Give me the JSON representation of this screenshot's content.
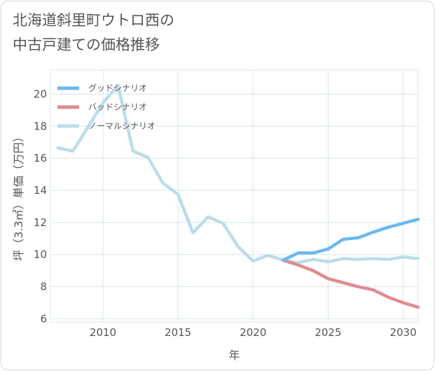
{
  "title": {
    "line1": "北海道斜里町ウトロ西の",
    "line2": "中古戸建ての価格推移"
  },
  "chart_data": {
    "type": "line",
    "xlabel": "年",
    "ylabel": "坪（3.3㎡）単価（万円）",
    "xlim": [
      2006.5,
      2031
    ],
    "ylim": [
      5.8,
      21.5
    ],
    "x_ticks": [
      2010,
      2015,
      2020,
      2025,
      2030
    ],
    "y_ticks": [
      6,
      8,
      10,
      12,
      14,
      16,
      18,
      20
    ],
    "grid": true,
    "legend_position": "top-left",
    "series": [
      {
        "name": "グッドシナリオ",
        "color": "#6cb8ee",
        "x": [
          2022,
          2023,
          2024,
          2025,
          2026,
          2027,
          2028,
          2029,
          2030,
          2031
        ],
        "values": [
          9.65,
          10.1,
          10.1,
          10.35,
          10.95,
          11.05,
          11.4,
          11.7,
          11.95,
          12.2
        ]
      },
      {
        "name": "バッドシナリオ",
        "color": "#e08a92",
        "x": [
          2022,
          2023,
          2024,
          2025,
          2026,
          2027,
          2028,
          2029,
          2030,
          2031
        ],
        "values": [
          9.65,
          9.35,
          9.0,
          8.5,
          8.25,
          8.0,
          7.8,
          7.35,
          7.0,
          6.72
        ]
      },
      {
        "name": "ノーマルシナリオ",
        "color": "#bcdcea",
        "x": [
          2007,
          2008,
          2009,
          2010,
          2011,
          2012,
          2013,
          2014,
          2015,
          2016,
          2017,
          2018,
          2019,
          2020,
          2021,
          2022,
          2023,
          2024,
          2025,
          2026,
          2027,
          2028,
          2029,
          2030,
          2031
        ],
        "values": [
          16.65,
          16.45,
          17.95,
          19.45,
          20.55,
          16.45,
          16.05,
          14.45,
          13.75,
          11.35,
          12.35,
          11.95,
          10.5,
          9.6,
          9.95,
          9.65,
          9.5,
          9.7,
          9.55,
          9.75,
          9.7,
          9.75,
          9.7,
          9.85,
          9.75
        ]
      }
    ]
  }
}
